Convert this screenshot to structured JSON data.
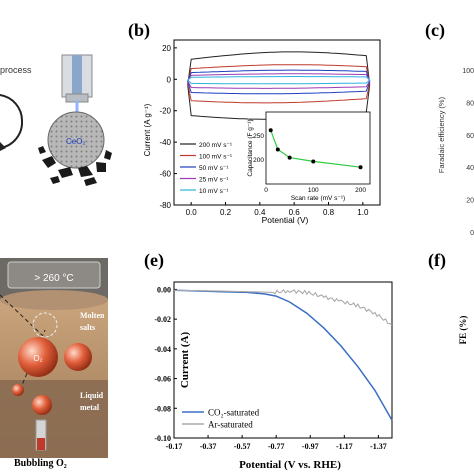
{
  "panels": {
    "a_fragment": {
      "label": "process",
      "particle_label": "CeO₂"
    },
    "b": {
      "letter": "(b)",
      "chart_data": {
        "type": "line",
        "xlabel": "Potential (V)",
        "ylabel": "Current (A g⁻¹)",
        "xlim": [
          -0.1,
          1.1
        ],
        "ylim": [
          -80,
          25
        ],
        "xticks": [
          0.0,
          0.2,
          0.4,
          0.6,
          0.8,
          1.0
        ],
        "yticks": [
          20,
          0,
          -20,
          -40,
          -60,
          -80
        ],
        "grid": false,
        "legend_position": "bottom-left",
        "series": [
          {
            "name": "200 mV s⁻¹",
            "color": "#222222",
            "upper": 15,
            "lower": -22,
            "color_note": "black"
          },
          {
            "name": "100 mV s⁻¹",
            "color": "#c0392b",
            "upper": 8,
            "lower": -13
          },
          {
            "name": "50 mV s⁻¹",
            "color": "#1f3fbf",
            "upper": 5,
            "lower": -8
          },
          {
            "name": "25 mV s⁻¹",
            "color": "#9b3bb5",
            "upper": 3,
            "lower": -5
          },
          {
            "name": "10 mV s⁻¹",
            "color": "#2bb3e0",
            "upper": 1.5,
            "lower": -2.5
          }
        ],
        "inset": {
          "type": "line",
          "xlabel": "Scan rate (mV s⁻¹)",
          "ylabel": "Capacitance (F g⁻¹)",
          "xlim": [
            0,
            220
          ],
          "ylim": [
            150,
            300
          ],
          "xticks": [
            0,
            100,
            200
          ],
          "yticks": [
            200,
            250
          ],
          "x": [
            10,
            25,
            50,
            100,
            200
          ],
          "y": [
            262,
            222,
            205,
            197,
            185
          ],
          "color": "#2ecc40"
        }
      }
    },
    "c_fragment": {
      "letter": "(c)",
      "ylabel": "Faradaic efficiency (%)",
      "yticks": [
        "100",
        "80",
        "60",
        "40",
        "20",
        "0"
      ]
    },
    "d_fragment": {
      "temperature": "> 260 °C",
      "labels": {
        "molten": "Molten salts",
        "liquid": "Liquid metal",
        "bubbling": "Bubbling O₂"
      },
      "bubble_label": "O₂"
    },
    "e": {
      "letter": "(e)",
      "chart_data": {
        "type": "line",
        "xlabel": "Potential (V vs. RHE)",
        "ylabel": "Current (A)",
        "xlim": [
          -0.17,
          -1.45
        ],
        "ylim": [
          -0.1,
          0.005
        ],
        "xticks": [
          "-0.17",
          "-0.37",
          "-0.57",
          "-0.77",
          "-0.97",
          "-1.17",
          "-1.37"
        ],
        "xtick_values": [
          -0.17,
          -0.37,
          -0.57,
          -0.77,
          -0.97,
          -1.17,
          -1.37
        ],
        "yticks": [
          "0.00",
          "-0.02",
          "-0.04",
          "-0.06",
          "-0.08",
          "-0.10"
        ],
        "ytick_values": [
          0.0,
          -0.02,
          -0.04,
          -0.06,
          -0.08,
          -0.1
        ],
        "legend_position": "bottom-left",
        "series": [
          {
            "name": "CO₂-saturated",
            "color": "#3a6fc4",
            "x": [
              -0.17,
              -0.3,
              -0.45,
              -0.6,
              -0.7,
              -0.77,
              -0.85,
              -0.95,
              -1.05,
              -1.15,
              -1.25,
              -1.35,
              -1.45
            ],
            "y": [
              -0.0005,
              -0.001,
              -0.0015,
              -0.002,
              -0.003,
              -0.0045,
              -0.0085,
              -0.016,
              -0.026,
              -0.038,
              -0.052,
              -0.068,
              -0.088
            ]
          },
          {
            "name": "Ar-saturated",
            "color": "#aaaaaa",
            "x": [
              -0.17,
              -0.4,
              -0.6,
              -0.75,
              -0.85,
              -0.95,
              -1.05,
              -1.15,
              -1.25,
              -1.35,
              -1.45
            ],
            "y": [
              -0.0005,
              -0.001,
              -0.0015,
              -0.002,
              -0.001,
              -0.002,
              -0.005,
              -0.008,
              -0.011,
              -0.016,
              -0.024
            ]
          }
        ]
      }
    },
    "f_fragment": {
      "letter": "(f)",
      "ylabel": "FE (%)"
    }
  }
}
